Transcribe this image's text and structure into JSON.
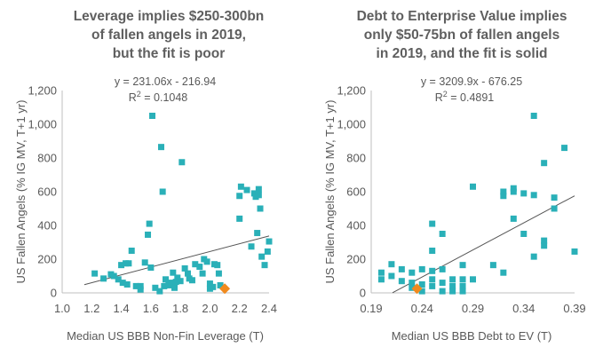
{
  "chart_data": [
    {
      "type": "scatter",
      "title": [
        "Leverage implies $250-300bn",
        "of fallen angels in 2019,",
        "but the fit is poor"
      ],
      "xlabel": "Median US BBB Non-Fin Leverage (T)",
      "ylabel": "US Fallen Angels (% IG MV, T+1 yr)",
      "xlim": [
        1.0,
        2.4
      ],
      "ylim": [
        0,
        1200
      ],
      "xticks": [
        "1.0",
        "1.2",
        "1.4",
        "1.6",
        "1.8",
        "2.0",
        "2.2",
        "2.4"
      ],
      "yticks": [
        "0",
        "200",
        "400",
        "600",
        "800",
        "1,000",
        "1,200"
      ],
      "equation": "y = 231.06x - 216.94",
      "r2_prefix": "R",
      "r2_sup": "2",
      "r2_value": " = 0.1048",
      "trendline": {
        "slope": 231.06,
        "intercept": -216.94,
        "x_range": [
          1.15,
          2.4
        ]
      },
      "points_color": "#2ab0b8",
      "highlight_color": "#f08a1e",
      "points": [
        [
          1.22,
          115
        ],
        [
          1.28,
          85
        ],
        [
          1.33,
          110
        ],
        [
          1.35,
          100
        ],
        [
          1.38,
          80
        ],
        [
          1.4,
          165
        ],
        [
          1.41,
          60
        ],
        [
          1.43,
          175
        ],
        [
          1.45,
          175
        ],
        [
          1.44,
          50
        ],
        [
          1.47,
          250
        ],
        [
          1.5,
          40
        ],
        [
          1.53,
          20
        ],
        [
          1.53,
          40
        ],
        [
          1.56,
          180
        ],
        [
          1.58,
          345
        ],
        [
          1.59,
          410
        ],
        [
          1.6,
          150
        ],
        [
          1.61,
          1050
        ],
        [
          1.63,
          30
        ],
        [
          1.66,
          10
        ],
        [
          1.67,
          865
        ],
        [
          1.68,
          600
        ],
        [
          1.69,
          40
        ],
        [
          1.7,
          80
        ],
        [
          1.72,
          50
        ],
        [
          1.73,
          45
        ],
        [
          1.74,
          60
        ],
        [
          1.75,
          120
        ],
        [
          1.76,
          30
        ],
        [
          1.77,
          65
        ],
        [
          1.78,
          90
        ],
        [
          1.8,
          70
        ],
        [
          1.81,
          775
        ],
        [
          1.83,
          145
        ],
        [
          1.85,
          115
        ],
        [
          1.86,
          85
        ],
        [
          1.88,
          75
        ],
        [
          1.9,
          170
        ],
        [
          1.93,
          155
        ],
        [
          1.95,
          115
        ],
        [
          1.96,
          200
        ],
        [
          1.98,
          185
        ],
        [
          2.0,
          55
        ],
        [
          2.0,
          25
        ],
        [
          2.02,
          35
        ],
        [
          2.03,
          170
        ],
        [
          2.05,
          165
        ],
        [
          2.06,
          115
        ],
        [
          2.07,
          45
        ],
        [
          2.2,
          440
        ],
        [
          2.2,
          575
        ],
        [
          2.21,
          630
        ],
        [
          2.25,
          610
        ],
        [
          2.28,
          275
        ],
        [
          2.3,
          590
        ],
        [
          2.31,
          570
        ],
        [
          2.32,
          355
        ],
        [
          2.33,
          615
        ],
        [
          2.33,
          580
        ],
        [
          2.34,
          500
        ],
        [
          2.35,
          215
        ],
        [
          2.37,
          165
        ],
        [
          2.39,
          245
        ],
        [
          2.4,
          305
        ]
      ],
      "highlight": [
        2.1,
        25
      ]
    },
    {
      "type": "scatter",
      "title": [
        "Debt to Enterprise Value implies",
        "only $50-75bn of fallen angels",
        "in 2019, and the fit is solid"
      ],
      "xlabel": "Median US BBB Debt to EV (T)",
      "ylabel": "US Fallen Angels (% IG MV, T+1 yr)",
      "xlim": [
        0.19,
        0.39
      ],
      "ylim": [
        0,
        1200
      ],
      "xticks": [
        "0.19",
        "0.24",
        "0.29",
        "0.34",
        "0.39"
      ],
      "yticks": [
        "0",
        "200",
        "400",
        "600",
        "800",
        "1,000",
        "1,200"
      ],
      "equation": "y = 3209.9x - 676.25",
      "r2_prefix": "R",
      "r2_sup": "2",
      "r2_value": " = 0.4891",
      "trendline": {
        "slope": 3209.9,
        "intercept": -676.25,
        "x_range": [
          0.211,
          0.39
        ]
      },
      "points_color": "#2ab0b8",
      "highlight_color": "#f08a1e",
      "points": [
        [
          0.2,
          120
        ],
        [
          0.2,
          80
        ],
        [
          0.21,
          170
        ],
        [
          0.21,
          100
        ],
        [
          0.22,
          140
        ],
        [
          0.22,
          70
        ],
        [
          0.23,
          120
        ],
        [
          0.23,
          60
        ],
        [
          0.23,
          30
        ],
        [
          0.24,
          50
        ],
        [
          0.24,
          140
        ],
        [
          0.24,
          10
        ],
        [
          0.25,
          80
        ],
        [
          0.25,
          410
        ],
        [
          0.25,
          250
        ],
        [
          0.25,
          130
        ],
        [
          0.25,
          40
        ],
        [
          0.26,
          350
        ],
        [
          0.26,
          60
        ],
        [
          0.26,
          10
        ],
        [
          0.26,
          140
        ],
        [
          0.27,
          80
        ],
        [
          0.27,
          40
        ],
        [
          0.27,
          10
        ],
        [
          0.28,
          165
        ],
        [
          0.28,
          80
        ],
        [
          0.28,
          40
        ],
        [
          0.28,
          10
        ],
        [
          0.29,
          630
        ],
        [
          0.29,
          80
        ],
        [
          0.31,
          165
        ],
        [
          0.32,
          600
        ],
        [
          0.32,
          575
        ],
        [
          0.32,
          120
        ],
        [
          0.33,
          600
        ],
        [
          0.33,
          620
        ],
        [
          0.33,
          440
        ],
        [
          0.34,
          590
        ],
        [
          0.34,
          350
        ],
        [
          0.35,
          1050
        ],
        [
          0.35,
          580
        ],
        [
          0.35,
          215
        ],
        [
          0.36,
          770
        ],
        [
          0.36,
          310
        ],
        [
          0.36,
          280
        ],
        [
          0.37,
          565
        ],
        [
          0.37,
          500
        ],
        [
          0.38,
          860
        ],
        [
          0.39,
          245
        ]
      ],
      "highlight": [
        0.235,
        25
      ]
    }
  ]
}
